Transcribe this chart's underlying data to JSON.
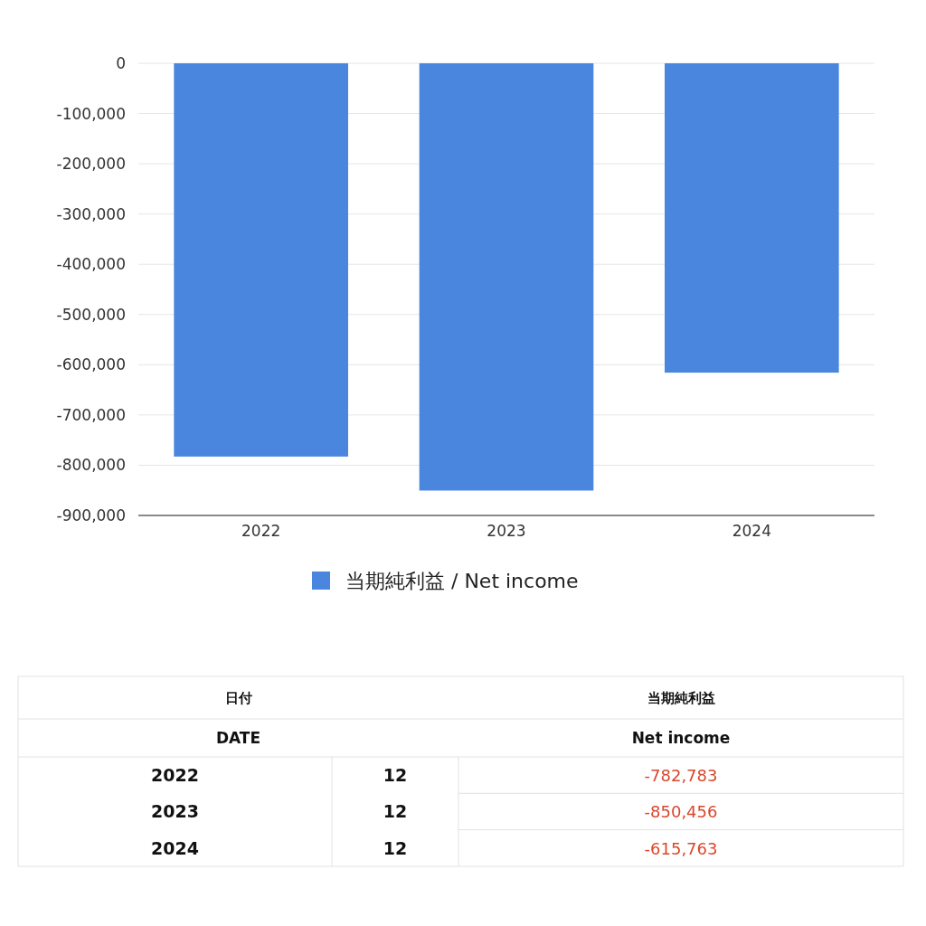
{
  "chart_data": {
    "type": "bar",
    "categories": [
      "2022",
      "2023",
      "2024"
    ],
    "series": [
      {
        "name": "当期純利益 / Net income",
        "color": "#4a86dd",
        "values": [
          -782783,
          -850456,
          -615763
        ]
      }
    ],
    "ylim": [
      -900000,
      0
    ],
    "yticks": [
      {
        "value": 0,
        "label": "0"
      },
      {
        "value": -100000,
        "label": "-100,000"
      },
      {
        "value": -200000,
        "label": "-200,000"
      },
      {
        "value": -300000,
        "label": "-300,000"
      },
      {
        "value": -400000,
        "label": "-400,000"
      },
      {
        "value": -500000,
        "label": "-500,000"
      },
      {
        "value": -600000,
        "label": "-600,000"
      },
      {
        "value": -700000,
        "label": "-700,000"
      },
      {
        "value": -800000,
        "label": "-800,000"
      },
      {
        "value": -900000,
        "label": "-900,000"
      }
    ],
    "grid": "y",
    "legend": "bottom",
    "annotations": [
      "日付",
      "DATE",
      "当期純利益",
      "Net income",
      "12",
      "12",
      "12",
      "-782,783",
      "-850,456",
      "-615,763"
    ]
  }
}
